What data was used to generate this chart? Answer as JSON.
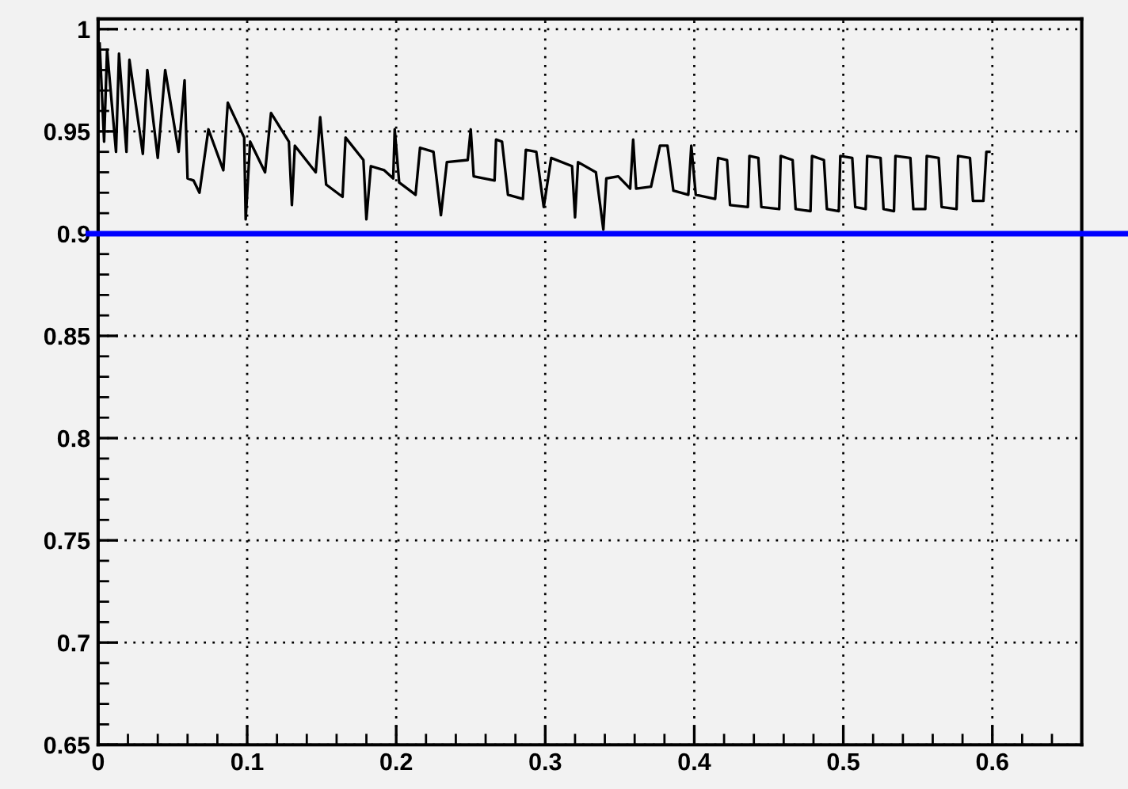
{
  "chart_data": {
    "type": "line",
    "series": [
      {
        "color": "#000000",
        "x": [
          0.001,
          0.004,
          0.006,
          0.012,
          0.014,
          0.019,
          0.021,
          0.03,
          0.033,
          0.04,
          0.045,
          0.054,
          0.058,
          0.06,
          0.064,
          0.068,
          0.074,
          0.084,
          0.087,
          0.098,
          0.099,
          0.102,
          0.112,
          0.116,
          0.128,
          0.13,
          0.132,
          0.146,
          0.149,
          0.153,
          0.164,
          0.166,
          0.178,
          0.18,
          0.183,
          0.192,
          0.198,
          0.199,
          0.202,
          0.213,
          0.216,
          0.225,
          0.23,
          0.234,
          0.248,
          0.25,
          0.252,
          0.266,
          0.267,
          0.271,
          0.275,
          0.285,
          0.287,
          0.294,
          0.299,
          0.304,
          0.318,
          0.32,
          0.322,
          0.334,
          0.339,
          0.341,
          0.349,
          0.357,
          0.359,
          0.361,
          0.371,
          0.377,
          0.382,
          0.386,
          0.396,
          0.398,
          0.401,
          0.414,
          0.416,
          0.422,
          0.424,
          0.436,
          0.437,
          0.443,
          0.445,
          0.457,
          0.458,
          0.466,
          0.468,
          0.478,
          0.479,
          0.487,
          0.489,
          0.497,
          0.498,
          0.506,
          0.508,
          0.515,
          0.516,
          0.525,
          0.527,
          0.534,
          0.535,
          0.545,
          0.547,
          0.555,
          0.556,
          0.564,
          0.566,
          0.576,
          0.577,
          0.585,
          0.587,
          0.594,
          0.596,
          0.598
        ],
        "values": [
          0.993,
          0.945,
          0.99,
          0.94,
          0.988,
          0.94,
          0.985,
          0.939,
          0.98,
          0.937,
          0.98,
          0.94,
          0.975,
          0.927,
          0.926,
          0.92,
          0.951,
          0.931,
          0.964,
          0.947,
          0.907,
          0.945,
          0.93,
          0.959,
          0.945,
          0.914,
          0.943,
          0.93,
          0.957,
          0.924,
          0.918,
          0.947,
          0.936,
          0.907,
          0.933,
          0.931,
          0.927,
          0.951,
          0.925,
          0.919,
          0.942,
          0.94,
          0.909,
          0.935,
          0.936,
          0.951,
          0.928,
          0.926,
          0.946,
          0.945,
          0.919,
          0.917,
          0.941,
          0.94,
          0.913,
          0.937,
          0.933,
          0.908,
          0.935,
          0.93,
          0.902,
          0.927,
          0.928,
          0.922,
          0.946,
          0.922,
          0.923,
          0.943,
          0.943,
          0.921,
          0.919,
          0.943,
          0.919,
          0.917,
          0.937,
          0.936,
          0.914,
          0.913,
          0.938,
          0.937,
          0.913,
          0.912,
          0.938,
          0.936,
          0.912,
          0.911,
          0.938,
          0.936,
          0.912,
          0.911,
          0.938,
          0.937,
          0.913,
          0.912,
          0.938,
          0.937,
          0.912,
          0.911,
          0.938,
          0.937,
          0.912,
          0.912,
          0.938,
          0.937,
          0.913,
          0.912,
          0.938,
          0.937,
          0.916,
          0.916,
          0.94,
          0.94
        ]
      }
    ],
    "xlim": [
      0,
      0.66
    ],
    "ylim": [
      0.65,
      1.005
    ],
    "xticks": [
      0,
      0.1,
      0.2,
      0.3,
      0.4,
      0.5,
      0.6
    ],
    "yticks": [
      0.65,
      0.7,
      0.75,
      0.8,
      0.85,
      0.9,
      0.95,
      1
    ],
    "ref_lines": [
      {
        "axis": "y",
        "value": 0.9,
        "color": "#0000ff"
      }
    ],
    "grid": true,
    "marker": "none",
    "line_style": "solid"
  }
}
